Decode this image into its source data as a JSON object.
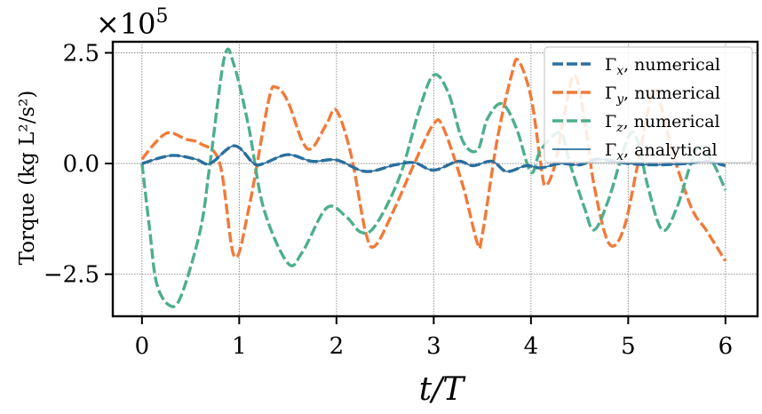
{
  "chart_data": {
    "type": "line",
    "multiplier_label": "×10",
    "multiplier_exponent": "5",
    "xlabel": "t/T",
    "ylabel_main": "Torque",
    "ylabel_unit": "(kg L²/s²)",
    "xlim": [
      -0.3,
      6.33
    ],
    "ylim": [
      -3.45,
      2.75
    ],
    "xticks": [
      0,
      1,
      2,
      3,
      4,
      5,
      6
    ],
    "xtick_labels": [
      "0",
      "1",
      "2",
      "3",
      "4",
      "5",
      "6"
    ],
    "yticks": [
      -2.5,
      0.0,
      2.5
    ],
    "ytick_labels": [
      "−2.5",
      "0.0",
      "2.5"
    ],
    "grid": true,
    "legend_position": "top-right",
    "legend": [
      {
        "symbol": "Γ",
        "sub": "x",
        "text": ", numerical",
        "style": "dashed",
        "color": "#2a6f9e"
      },
      {
        "symbol": "Γ",
        "sub": "y",
        "text": ", numerical",
        "style": "dashed",
        "color": "#f07a3a"
      },
      {
        "symbol": "Γ",
        "sub": "z",
        "text": ", numerical",
        "style": "dashed",
        "color": "#4daf8b"
      },
      {
        "symbol": "Γ",
        "sub": "x",
        "text": ", analytical",
        "style": "solid",
        "color": "#2a6f9e"
      }
    ],
    "series": [
      {
        "name": "Γx, numerical",
        "color": "#2a6f9e",
        "style": "dashed",
        "points": [
          [
            0,
            0
          ],
          [
            0.3,
            0.18
          ],
          [
            0.55,
            0.1
          ],
          [
            0.7,
            0.0
          ],
          [
            0.95,
            0.4
          ],
          [
            1.15,
            0.0
          ],
          [
            1.25,
            0.0
          ],
          [
            1.5,
            0.2
          ],
          [
            1.75,
            0.05
          ],
          [
            2.0,
            0.08
          ],
          [
            2.3,
            -0.18
          ],
          [
            2.6,
            -0.03
          ],
          [
            2.8,
            0.02
          ],
          [
            3.0,
            -0.15
          ],
          [
            3.25,
            0.05
          ],
          [
            3.4,
            -0.05
          ],
          [
            3.6,
            0.05
          ],
          [
            3.75,
            -0.18
          ],
          [
            3.95,
            -0.05
          ],
          [
            4.1,
            -0.1
          ],
          [
            4.3,
            0.0
          ],
          [
            4.5,
            -0.03
          ],
          [
            4.7,
            0.1
          ],
          [
            5.0,
            0.0
          ],
          [
            5.3,
            -0.03
          ],
          [
            5.6,
            0.0
          ],
          [
            5.8,
            0.05
          ],
          [
            6.0,
            -0.05
          ]
        ]
      },
      {
        "name": "Γy, numerical",
        "color": "#f07a3a",
        "style": "dashed",
        "points": [
          [
            0,
            0.1
          ],
          [
            0.15,
            0.5
          ],
          [
            0.28,
            0.7
          ],
          [
            0.45,
            0.55
          ],
          [
            0.6,
            0.45
          ],
          [
            0.8,
            0.0
          ],
          [
            0.95,
            -2.1
          ],
          [
            1.1,
            -1.0
          ],
          [
            1.3,
            1.4
          ],
          [
            1.38,
            1.72
          ],
          [
            1.5,
            1.4
          ],
          [
            1.65,
            0.5
          ],
          [
            1.75,
            0.35
          ],
          [
            1.9,
            0.9
          ],
          [
            2.0,
            1.2
          ],
          [
            2.15,
            0.2
          ],
          [
            2.3,
            -1.55
          ],
          [
            2.4,
            -1.85
          ],
          [
            2.6,
            -1.0
          ],
          [
            2.8,
            0.0
          ],
          [
            3.0,
            0.9
          ],
          [
            3.1,
            0.8
          ],
          [
            3.3,
            -0.5
          ],
          [
            3.45,
            -1.8
          ],
          [
            3.5,
            -1.6
          ],
          [
            3.65,
            0.5
          ],
          [
            3.8,
            2.0
          ],
          [
            3.87,
            2.33
          ],
          [
            4.0,
            1.5
          ],
          [
            4.1,
            0.0
          ],
          [
            4.15,
            -0.5
          ],
          [
            4.25,
            0.0
          ],
          [
            4.35,
            1.2
          ],
          [
            4.45,
            2.0
          ],
          [
            4.55,
            1.0
          ],
          [
            4.65,
            -0.5
          ],
          [
            4.8,
            -1.8
          ],
          [
            4.95,
            -1.5
          ],
          [
            5.1,
            0.0
          ],
          [
            5.25,
            1.6
          ],
          [
            5.35,
            1.2
          ],
          [
            5.45,
            0.3
          ],
          [
            5.65,
            -1.0
          ],
          [
            5.8,
            -1.5
          ],
          [
            6.0,
            -2.2
          ]
        ]
      },
      {
        "name": "Γz, numerical",
        "color": "#4daf8b",
        "style": "dashed",
        "points": [
          [
            0,
            0
          ],
          [
            0.08,
            -1.5
          ],
          [
            0.15,
            -2.7
          ],
          [
            0.28,
            -3.2
          ],
          [
            0.4,
            -3.0
          ],
          [
            0.6,
            -1.5
          ],
          [
            0.7,
            0.0
          ],
          [
            0.85,
            2.42
          ],
          [
            0.95,
            2.2
          ],
          [
            1.1,
            0.8
          ],
          [
            1.25,
            -1.0
          ],
          [
            1.5,
            -2.25
          ],
          [
            1.65,
            -2.0
          ],
          [
            1.9,
            -1.0
          ],
          [
            2.1,
            -1.2
          ],
          [
            2.25,
            -1.55
          ],
          [
            2.4,
            -1.4
          ],
          [
            2.65,
            -0.3
          ],
          [
            2.85,
            1.2
          ],
          [
            3.0,
            2.0
          ],
          [
            3.15,
            1.6
          ],
          [
            3.3,
            0.5
          ],
          [
            3.45,
            0.3
          ],
          [
            3.55,
            1.0
          ],
          [
            3.7,
            1.35
          ],
          [
            3.85,
            0.8
          ],
          [
            4.0,
            -0.2
          ],
          [
            4.1,
            0.3
          ],
          [
            4.3,
            0.7
          ],
          [
            4.4,
            0.0
          ],
          [
            4.55,
            -1.0
          ],
          [
            4.65,
            -1.5
          ],
          [
            4.8,
            -0.8
          ],
          [
            5.0,
            0.6
          ],
          [
            5.1,
            0.5
          ],
          [
            5.2,
            -0.5
          ],
          [
            5.35,
            -1.5
          ],
          [
            5.5,
            -1.0
          ],
          [
            5.7,
            0.3
          ],
          [
            5.85,
            0.1
          ],
          [
            6.0,
            -0.6
          ]
        ]
      },
      {
        "name": "Γx, analytical",
        "color": "#2a6f9e",
        "style": "solid",
        "points": [
          [
            0,
            0
          ],
          [
            0.3,
            0.18
          ],
          [
            0.55,
            0.1
          ],
          [
            0.7,
            0.0
          ],
          [
            0.95,
            0.4
          ],
          [
            1.15,
            0.0
          ],
          [
            1.25,
            0.0
          ],
          [
            1.5,
            0.2
          ],
          [
            1.75,
            0.05
          ],
          [
            2.0,
            0.08
          ],
          [
            2.3,
            -0.18
          ],
          [
            2.6,
            -0.03
          ],
          [
            2.8,
            0.02
          ],
          [
            3.0,
            -0.15
          ],
          [
            3.25,
            0.05
          ],
          [
            3.4,
            -0.05
          ],
          [
            3.6,
            0.05
          ],
          [
            3.75,
            -0.18
          ],
          [
            3.95,
            -0.05
          ],
          [
            4.1,
            -0.1
          ],
          [
            4.3,
            0.0
          ],
          [
            4.5,
            -0.03
          ],
          [
            4.7,
            0.1
          ],
          [
            5.0,
            0.0
          ],
          [
            5.3,
            -0.03
          ],
          [
            5.6,
            0.0
          ],
          [
            5.8,
            0.05
          ],
          [
            6.0,
            -0.05
          ]
        ]
      }
    ]
  }
}
